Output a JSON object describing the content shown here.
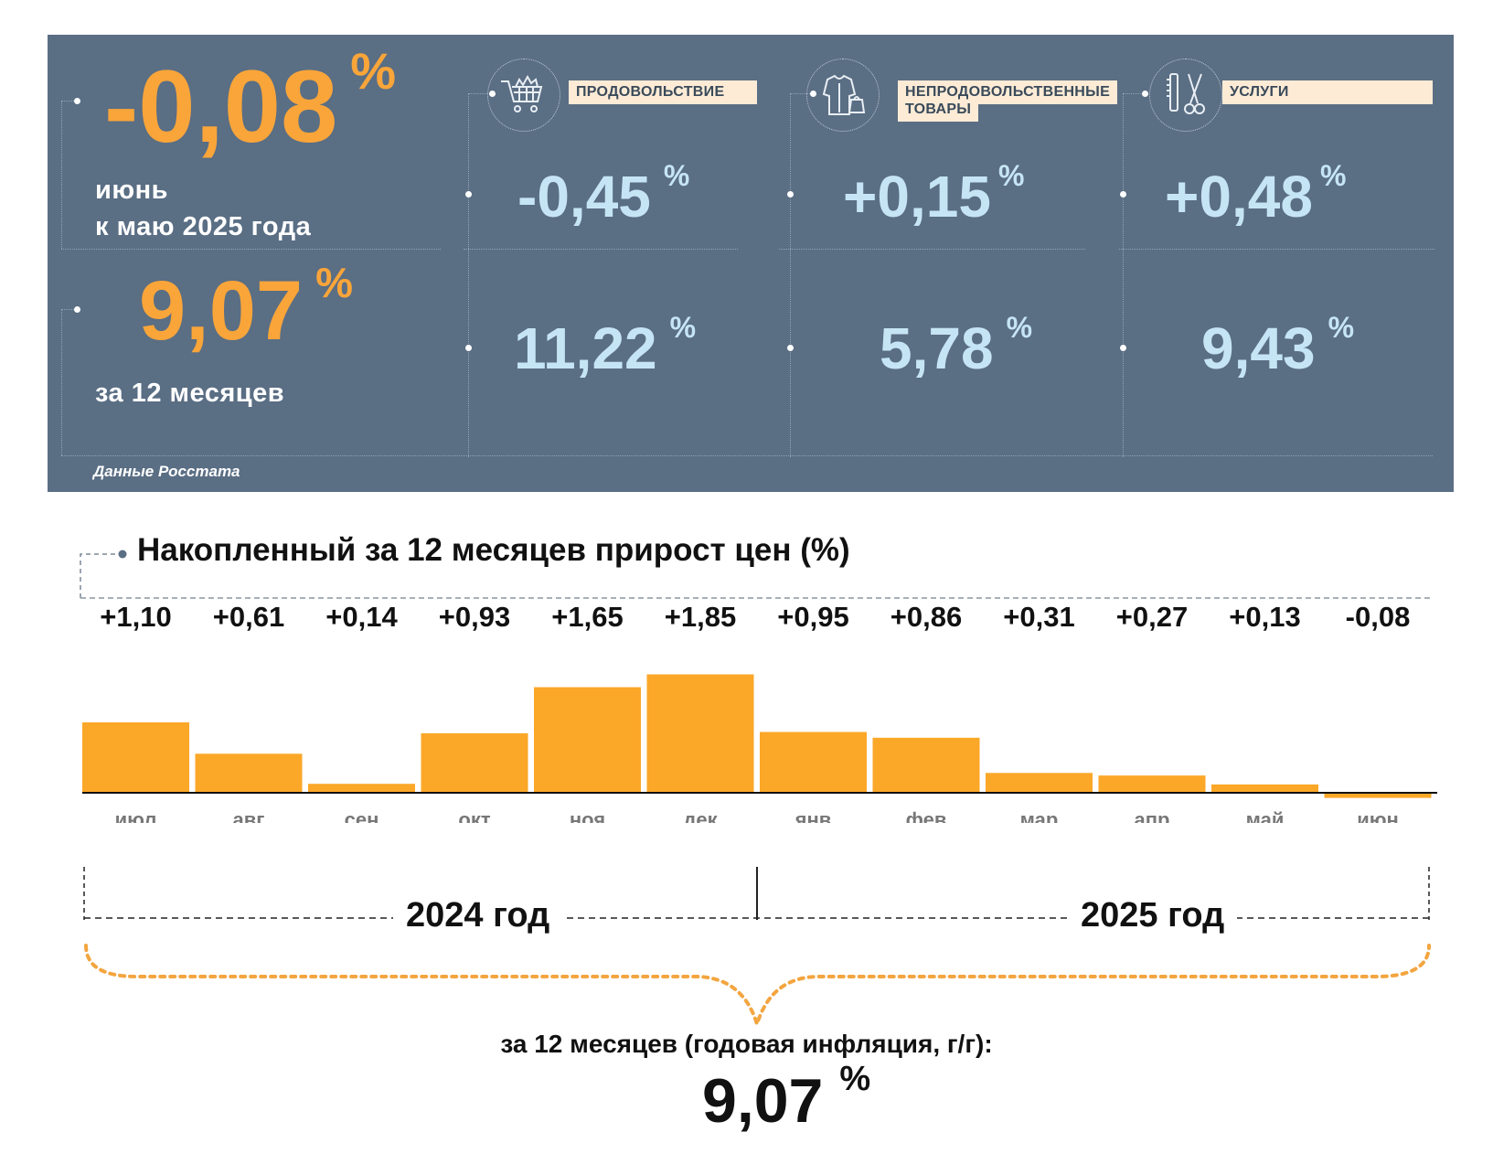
{
  "monthly": {
    "value": "-0,08",
    "unit": "%",
    "caption_line1": "июнь",
    "caption_line2": "к маю 2025 года"
  },
  "annual": {
    "value": "9,07",
    "unit": "%",
    "caption": "за 12 месяцев"
  },
  "categories": [
    {
      "label": "ПРОДОВОЛЬСТВИЕ",
      "icon": "shopping-cart-icon",
      "monthly": "-0,45",
      "annual": "11,22",
      "unit": "%"
    },
    {
      "label_line1": "НЕПРОДОВОЛЬСТВЕННЫЕ",
      "label_line2": "ТОВАРЫ",
      "icon": "clothes-icon",
      "monthly": "+0,15",
      "annual": "5,78",
      "unit": "%"
    },
    {
      "label": "УСЛУГИ",
      "icon": "scissors-comb-icon",
      "monthly": "+0,48",
      "annual": "9,43",
      "unit": "%"
    }
  ],
  "source": "Данные Росстата",
  "chart_data": {
    "type": "bar",
    "title": "Накопленный за 12 месяцев прирост цен (%)",
    "categories": [
      "июл",
      "авг",
      "сен",
      "окт",
      "ноя",
      "дек",
      "янв",
      "фев",
      "мар",
      "апр",
      "май",
      "июн"
    ],
    "values": [
      1.1,
      0.61,
      0.14,
      0.93,
      1.65,
      1.85,
      0.95,
      0.86,
      0.31,
      0.27,
      0.13,
      -0.08
    ],
    "value_labels": [
      "+1,10",
      "+0,61",
      "+0,14",
      "+0,93",
      "+1,65",
      "+1,85",
      "+0,95",
      "+0,86",
      "+0,31",
      "+0,27",
      "+0,13",
      "-0,08"
    ],
    "bar_color": "#fba728",
    "grid": false,
    "years": [
      "2024 год",
      "2025 год"
    ],
    "total_label": "за 12 месяцев (годовая инфляция, г/г):",
    "total_value": "9,07",
    "total_unit": "%"
  },
  "colors": {
    "panel": "#5a6e84",
    "accent": "#f9a53a",
    "value_light": "#c6e5f4",
    "label_bg": "#fdebd6"
  }
}
